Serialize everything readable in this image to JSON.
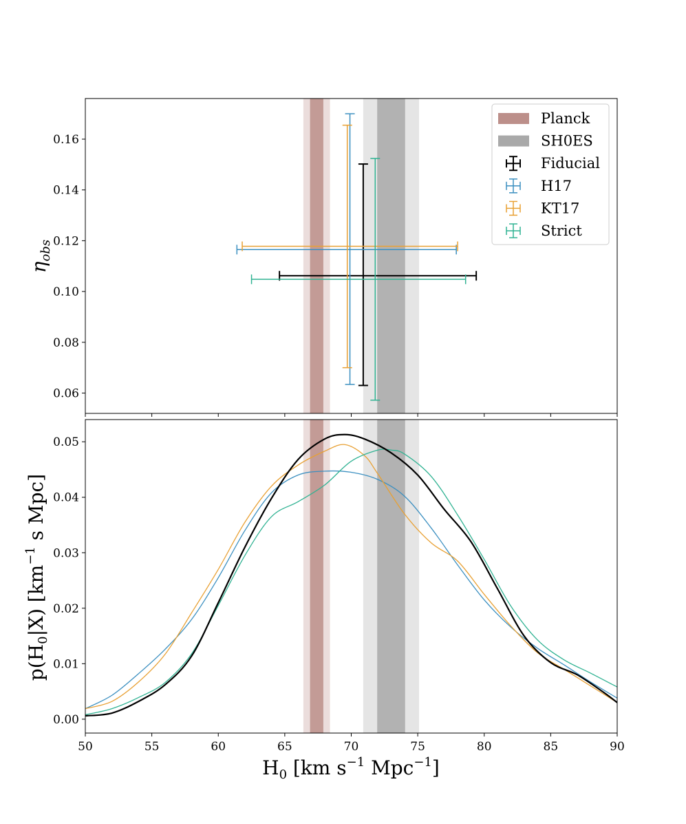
{
  "chart_data": [
    {
      "id": "top",
      "type": "scatter",
      "subtype": "errorbar",
      "ylabel": "η_obs",
      "xlabel": "",
      "xlim": [
        50,
        90
      ],
      "ylim": [
        0.052,
        0.176
      ],
      "yticks": [
        0.06,
        0.08,
        0.1,
        0.12,
        0.14,
        0.16
      ],
      "ytick_labels": [
        "0.06",
        "0.08",
        "0.10",
        "0.12",
        "0.14",
        "0.16"
      ],
      "bands": [
        {
          "name": "Planck",
          "center": 67.4,
          "sigma1": 0.5,
          "sigma2": 1.0,
          "color": "#bc8f8a"
        },
        {
          "name": "SH0ES",
          "center": 73.0,
          "sigma1": 1.05,
          "sigma2": 2.1,
          "color": "#a9a9a9"
        }
      ],
      "points": [
        {
          "name": "Fiducial",
          "x": 70.9,
          "xlo": 64.6,
          "xhi": 79.4,
          "y": 0.1062,
          "ylo": 0.063,
          "yhi": 0.1502,
          "color": "#000000"
        },
        {
          "name": "H17",
          "x": 69.9,
          "xlo": 61.4,
          "xhi": 77.9,
          "y": 0.1165,
          "ylo": 0.0634,
          "yhi": 0.17,
          "color": "#3b8fc0"
        },
        {
          "name": "KT17",
          "x": 69.7,
          "xlo": 61.8,
          "xhi": 78.0,
          "y": 0.1178,
          "ylo": 0.07,
          "yhi": 0.1655,
          "color": "#e8a033"
        },
        {
          "name": "Strict",
          "x": 71.8,
          "xlo": 62.5,
          "xhi": 78.6,
          "y": 0.1048,
          "ylo": 0.0572,
          "yhi": 0.1524,
          "color": "#2fb292"
        }
      ],
      "legend": {
        "location": "top-right",
        "entries": [
          "Planck",
          "SH0ES",
          "Fiducial",
          "H17",
          "KT17",
          "Strict"
        ]
      }
    },
    {
      "id": "bottom",
      "type": "line",
      "xlabel": "H₀ [km s⁻¹ Mpc⁻¹]",
      "ylabel": "p(H₀|X) [km⁻¹ s Mpc]",
      "xlim": [
        50,
        90
      ],
      "ylim": [
        -0.0025,
        0.054
      ],
      "xticks": [
        50,
        55,
        60,
        65,
        70,
        75,
        80,
        85,
        90
      ],
      "xtick_labels": [
        "50",
        "55",
        "60",
        "65",
        "70",
        "75",
        "80",
        "85",
        "90"
      ],
      "yticks": [
        0.0,
        0.01,
        0.02,
        0.03,
        0.04,
        0.05
      ],
      "ytick_labels": [
        "0.00",
        "0.01",
        "0.02",
        "0.03",
        "0.04",
        "0.05"
      ],
      "series": [
        {
          "name": "H17",
          "color": "#3b8fc0",
          "width": 1.3,
          "x": [
            50,
            52,
            54,
            56,
            58,
            60,
            62,
            64,
            66,
            68,
            70,
            72,
            74,
            76,
            78,
            80,
            82,
            84,
            86,
            88,
            90
          ],
          "y": [
            0.0019,
            0.0043,
            0.0082,
            0.0126,
            0.018,
            0.0255,
            0.034,
            0.0408,
            0.044,
            0.0447,
            0.0445,
            0.0432,
            0.0402,
            0.0345,
            0.0278,
            0.0215,
            0.0166,
            0.0128,
            0.0098,
            0.0067,
            0.0038
          ]
        },
        {
          "name": "KT17",
          "color": "#e8a033",
          "width": 1.3,
          "x": [
            50,
            52,
            54,
            56,
            58,
            60,
            62,
            64,
            66,
            68,
            69.5,
            71,
            72,
            74,
            76,
            78,
            80,
            82,
            84,
            86,
            88,
            90
          ],
          "y": [
            0.0019,
            0.0032,
            0.0067,
            0.0117,
            0.0192,
            0.027,
            0.0355,
            0.042,
            0.0458,
            0.0483,
            0.0495,
            0.0475,
            0.0442,
            0.037,
            0.0318,
            0.0285,
            0.0225,
            0.0168,
            0.012,
            0.009,
            0.006,
            0.003
          ]
        },
        {
          "name": "Strict",
          "color": "#2fb292",
          "width": 1.3,
          "x": [
            50,
            52,
            54,
            56,
            58,
            60,
            62,
            64,
            66,
            68,
            70,
            72,
            73,
            74,
            76,
            78,
            80,
            82,
            84,
            86,
            88,
            90
          ],
          "y": [
            0.0008,
            0.0019,
            0.0039,
            0.0066,
            0.0118,
            0.0205,
            0.0295,
            0.0365,
            0.0392,
            0.0422,
            0.0465,
            0.0485,
            0.0485,
            0.0478,
            0.0438,
            0.0368,
            0.0288,
            0.0204,
            0.0143,
            0.0107,
            0.0083,
            0.0058
          ]
        },
        {
          "name": "Fiducial",
          "color": "#000000",
          "width": 2.2,
          "x": [
            50,
            52,
            54,
            56,
            58,
            60,
            62,
            64,
            66,
            68,
            69.5,
            71,
            73,
            75,
            77,
            79,
            81,
            83,
            85,
            87,
            89,
            90
          ],
          "y": [
            0.0006,
            0.0011,
            0.0032,
            0.0062,
            0.0114,
            0.021,
            0.031,
            0.0398,
            0.0468,
            0.0505,
            0.0513,
            0.0505,
            0.048,
            0.044,
            0.0378,
            0.032,
            0.0235,
            0.015,
            0.0102,
            0.008,
            0.0048,
            0.003
          ]
        }
      ],
      "bands": [
        {
          "name": "Planck",
          "center": 67.4,
          "sigma1": 0.5,
          "sigma2": 1.0,
          "color": "#bc8f8a"
        },
        {
          "name": "SH0ES",
          "center": 73.0,
          "sigma1": 1.05,
          "sigma2": 2.1,
          "color": "#a9a9a9"
        }
      ]
    }
  ]
}
